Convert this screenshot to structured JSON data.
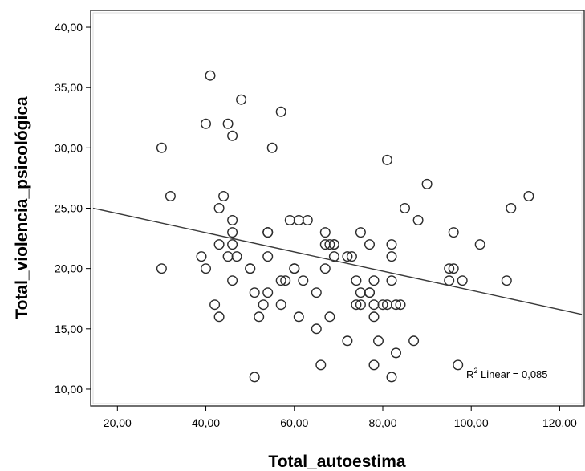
{
  "chart_data": {
    "type": "scatter",
    "title": "",
    "xlabel": "Total_autoestima",
    "ylabel": "Total_violencia_psicológica",
    "xlim": [
      14.5,
      125
    ],
    "ylim": [
      8.8,
      41.2
    ],
    "xticks": [
      20,
      40,
      60,
      80,
      100,
      120
    ],
    "yticks": [
      10,
      15,
      20,
      25,
      30,
      35,
      40
    ],
    "x_tick_labels": [
      "20,00",
      "40,00",
      "60,00",
      "80,00",
      "100,00",
      "120,00"
    ],
    "y_tick_labels": [
      "10,00",
      "15,00",
      "20,00",
      "25,00",
      "30,00",
      "35,00",
      "40,00"
    ],
    "grid": false,
    "annotation": {
      "prefix": "R",
      "sup": "2",
      "suffix": " Linear = 0,085"
    },
    "fit_line": {
      "x1": 14.5,
      "y1": 25.0,
      "x2": 125,
      "y2": 16.2
    },
    "points": [
      [
        30,
        30
      ],
      [
        30,
        20
      ],
      [
        32,
        26
      ],
      [
        39,
        21
      ],
      [
        40,
        32
      ],
      [
        40,
        20
      ],
      [
        41,
        36
      ],
      [
        42,
        17
      ],
      [
        43,
        16
      ],
      [
        43,
        25
      ],
      [
        43,
        22
      ],
      [
        44,
        26
      ],
      [
        45,
        32
      ],
      [
        45,
        21
      ],
      [
        46,
        31
      ],
      [
        46,
        24
      ],
      [
        46,
        23
      ],
      [
        46,
        22
      ],
      [
        46,
        19
      ],
      [
        47,
        21
      ],
      [
        48,
        34
      ],
      [
        50,
        20
      ],
      [
        50,
        20
      ],
      [
        51,
        18
      ],
      [
        51,
        11
      ],
      [
        52,
        16
      ],
      [
        53,
        17
      ],
      [
        54,
        23
      ],
      [
        54,
        23
      ],
      [
        54,
        21
      ],
      [
        54,
        18
      ],
      [
        55,
        30
      ],
      [
        57,
        33
      ],
      [
        57,
        19
      ],
      [
        57,
        17
      ],
      [
        58,
        19
      ],
      [
        59,
        24
      ],
      [
        60,
        20
      ],
      [
        60,
        20
      ],
      [
        61,
        24
      ],
      [
        61,
        16
      ],
      [
        62,
        19
      ],
      [
        63,
        24
      ],
      [
        65,
        18
      ],
      [
        65,
        15
      ],
      [
        66,
        12
      ],
      [
        67,
        23
      ],
      [
        67,
        22
      ],
      [
        67,
        20
      ],
      [
        68,
        22
      ],
      [
        68,
        16
      ],
      [
        69,
        22
      ],
      [
        69,
        22
      ],
      [
        69,
        21
      ],
      [
        72,
        21
      ],
      [
        72,
        14
      ],
      [
        73,
        21
      ],
      [
        74,
        19
      ],
      [
        74,
        17
      ],
      [
        75,
        23
      ],
      [
        75,
        18
      ],
      [
        75,
        17
      ],
      [
        77,
        22
      ],
      [
        77,
        18
      ],
      [
        77,
        18
      ],
      [
        78,
        19
      ],
      [
        78,
        17
      ],
      [
        78,
        16
      ],
      [
        78,
        12
      ],
      [
        79,
        14
      ],
      [
        80,
        17
      ],
      [
        81,
        29
      ],
      [
        81,
        17
      ],
      [
        82,
        22
      ],
      [
        82,
        21
      ],
      [
        82,
        19
      ],
      [
        82,
        11
      ],
      [
        83,
        17
      ],
      [
        83,
        13
      ],
      [
        84,
        17
      ],
      [
        85,
        25
      ],
      [
        87,
        14
      ],
      [
        88,
        24
      ],
      [
        90,
        27
      ],
      [
        95,
        20
      ],
      [
        95,
        19
      ],
      [
        96,
        23
      ],
      [
        96,
        20
      ],
      [
        97,
        12
      ],
      [
        98,
        19
      ],
      [
        102,
        22
      ],
      [
        108,
        19
      ],
      [
        109,
        25
      ],
      [
        113,
        26
      ]
    ]
  }
}
